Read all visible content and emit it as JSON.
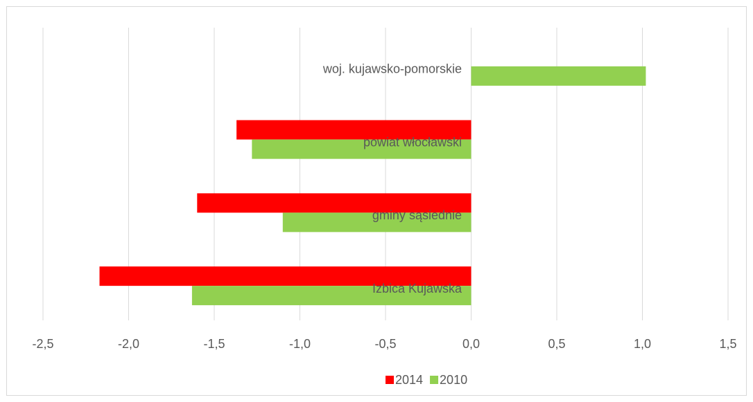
{
  "chart_data": {
    "type": "bar",
    "orientation": "horizontal",
    "categories": [
      "woj. kujawsko-pomorskie",
      "powiat włocławski",
      "gminy sąsiednie",
      "Izbica Kujawska"
    ],
    "series": [
      {
        "name": "2014",
        "color": "#ff0000",
        "values": [
          null,
          -1.37,
          -1.6,
          -2.17
        ]
      },
      {
        "name": "2010",
        "color": "#92d050",
        "values": [
          1.02,
          -1.28,
          -1.1,
          -1.63
        ]
      }
    ],
    "xlim": [
      -2.5,
      1.5
    ],
    "xticks": [
      {
        "value": -2.5,
        "label": "-2,5"
      },
      {
        "value": -2,
        "label": "-2,0"
      },
      {
        "value": -1.5,
        "label": "-1,5"
      },
      {
        "value": -1,
        "label": "-1,0"
      },
      {
        "value": -0.5,
        "label": "-0,5"
      },
      {
        "value": 0,
        "label": "0,0"
      },
      {
        "value": 0.5,
        "label": "0,5"
      },
      {
        "value": 1,
        "label": "1,0"
      },
      {
        "value": 1.5,
        "label": "1,5"
      }
    ],
    "grid": true,
    "legend": "bottom"
  }
}
